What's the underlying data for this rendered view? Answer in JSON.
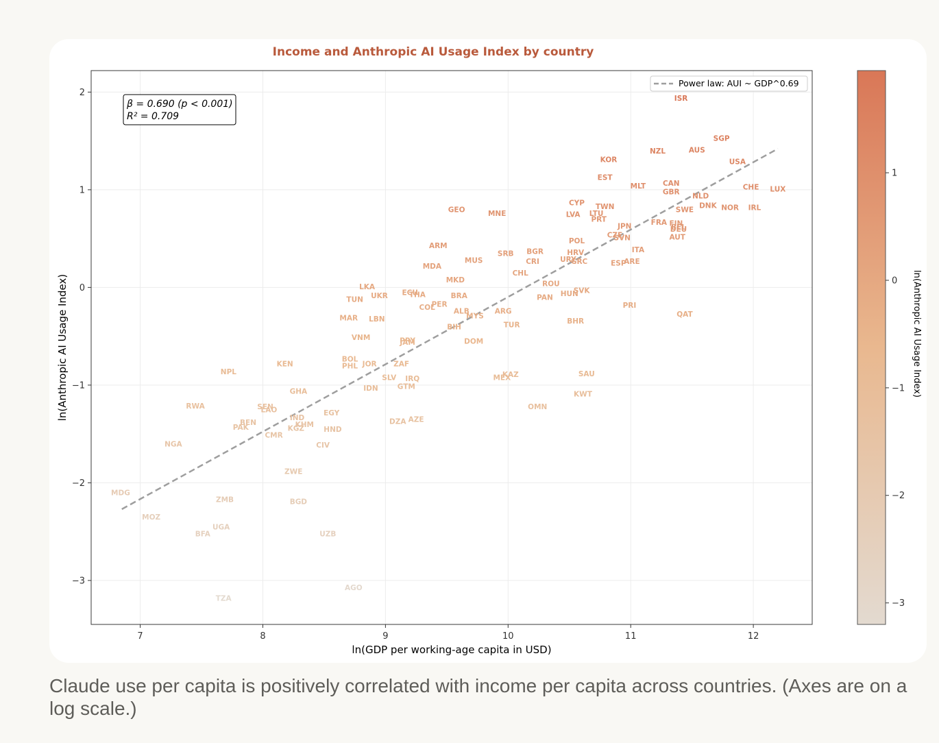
{
  "caption": "Claude use per capita is positively correlated with income per capita across countries. (Axes are on a log scale.)",
  "colors": {
    "background": "#f9f8f4",
    "title": "#b95a3c",
    "label_high": "#d97757",
    "label_low": "#e3dad0",
    "trend": "#9e9e9e"
  },
  "chart_data": {
    "type": "scatter",
    "title": "Income and Anthropic AI Usage Index by country",
    "xlabel": "ln(GDP per working-age capita in USD)",
    "ylabel": "ln(Anthropic AI Usage Index)",
    "colorbar_label": "ln(Anthropic AI Usage Index)",
    "xlim": [
      6.6,
      12.48
    ],
    "ylim": [
      -3.45,
      2.22
    ],
    "x_ticks": [
      7,
      8,
      9,
      10,
      11,
      12
    ],
    "y_ticks": [
      -3,
      -2,
      -1,
      0,
      1,
      2
    ],
    "colorbar_ticks": [
      -3,
      -2,
      -1,
      0,
      1
    ],
    "colorbar_range": [
      -3.2,
      1.95
    ],
    "grid": true,
    "legend": {
      "label": "Power law: AUI ~ GDP^0.69",
      "position": "top-right"
    },
    "annotation": {
      "line1": "β = 0.690 (p < 0.001)",
      "line2": "R² = 0.709"
    },
    "trend": {
      "slope": 0.69,
      "x_start": 6.85,
      "y_start": -2.27,
      "x_end": 12.2,
      "y_end": 1.42
    },
    "points": [
      {
        "label": "ISR",
        "x": 11.41,
        "y": 1.94
      },
      {
        "label": "SGP",
        "x": 11.74,
        "y": 1.53
      },
      {
        "label": "AUS",
        "x": 11.54,
        "y": 1.41
      },
      {
        "label": "NZL",
        "x": 11.22,
        "y": 1.4
      },
      {
        "label": "USA",
        "x": 11.87,
        "y": 1.29
      },
      {
        "label": "KOR",
        "x": 10.82,
        "y": 1.31
      },
      {
        "label": "EST",
        "x": 10.79,
        "y": 1.13
      },
      {
        "label": "MLT",
        "x": 11.06,
        "y": 1.04
      },
      {
        "label": "CAN",
        "x": 11.33,
        "y": 1.07
      },
      {
        "label": "GBR",
        "x": 11.33,
        "y": 0.98
      },
      {
        "label": "CHE",
        "x": 11.98,
        "y": 1.03
      },
      {
        "label": "LUX",
        "x": 12.2,
        "y": 1.01
      },
      {
        "label": "NLD",
        "x": 11.57,
        "y": 0.94
      },
      {
        "label": "DNK",
        "x": 11.63,
        "y": 0.84
      },
      {
        "label": "NOR",
        "x": 11.81,
        "y": 0.82
      },
      {
        "label": "IRL",
        "x": 12.01,
        "y": 0.82
      },
      {
        "label": "SWE",
        "x": 11.44,
        "y": 0.8
      },
      {
        "label": "CYP",
        "x": 10.56,
        "y": 0.87
      },
      {
        "label": "TWN",
        "x": 10.79,
        "y": 0.83
      },
      {
        "label": "LTU",
        "x": 10.72,
        "y": 0.76
      },
      {
        "label": "LVA",
        "x": 10.53,
        "y": 0.75
      },
      {
        "label": "PRT",
        "x": 10.74,
        "y": 0.7
      },
      {
        "label": "FRA",
        "x": 11.23,
        "y": 0.67
      },
      {
        "label": "FIN",
        "x": 11.37,
        "y": 0.66
      },
      {
        "label": "BEL",
        "x": 11.39,
        "y": 0.62
      },
      {
        "label": "DEU",
        "x": 11.39,
        "y": 0.6
      },
      {
        "label": "JPN",
        "x": 10.95,
        "y": 0.63
      },
      {
        "label": "CZE",
        "x": 10.87,
        "y": 0.54
      },
      {
        "label": "SVN",
        "x": 10.93,
        "y": 0.51
      },
      {
        "label": "AUT",
        "x": 11.38,
        "y": 0.52
      },
      {
        "label": "POL",
        "x": 10.56,
        "y": 0.48
      },
      {
        "label": "ITA",
        "x": 11.06,
        "y": 0.39
      },
      {
        "label": "HRV",
        "x": 10.55,
        "y": 0.36
      },
      {
        "label": "URY",
        "x": 10.49,
        "y": 0.29
      },
      {
        "label": "GRC",
        "x": 10.58,
        "y": 0.27
      },
      {
        "label": "ESP",
        "x": 10.9,
        "y": 0.25
      },
      {
        "label": "ARE",
        "x": 11.01,
        "y": 0.27
      },
      {
        "label": "GEO",
        "x": 9.58,
        "y": 0.8
      },
      {
        "label": "MNE",
        "x": 9.91,
        "y": 0.76
      },
      {
        "label": "ARM",
        "x": 9.43,
        "y": 0.43
      },
      {
        "label": "SRB",
        "x": 9.98,
        "y": 0.35
      },
      {
        "label": "BGR",
        "x": 10.22,
        "y": 0.37
      },
      {
        "label": "CRI",
        "x": 10.2,
        "y": 0.27
      },
      {
        "label": "MUS",
        "x": 9.72,
        "y": 0.28
      },
      {
        "label": "MDA",
        "x": 9.38,
        "y": 0.22
      },
      {
        "label": "CHL",
        "x": 10.1,
        "y": 0.15
      },
      {
        "label": "MKD",
        "x": 9.57,
        "y": 0.08
      },
      {
        "label": "ROU",
        "x": 10.35,
        "y": 0.04
      },
      {
        "label": "SVK",
        "x": 10.6,
        "y": -0.03
      },
      {
        "label": "HUN",
        "x": 10.5,
        "y": -0.06
      },
      {
        "label": "PAN",
        "x": 10.3,
        "y": -0.1
      },
      {
        "label": "LKA",
        "x": 8.85,
        "y": 0.01
      },
      {
        "label": "UKR",
        "x": 8.95,
        "y": -0.08
      },
      {
        "label": "TUN",
        "x": 8.75,
        "y": -0.12
      },
      {
        "label": "ECU",
        "x": 9.2,
        "y": -0.05
      },
      {
        "label": "THA",
        "x": 9.26,
        "y": -0.07
      },
      {
        "label": "BRA",
        "x": 9.6,
        "y": -0.08
      },
      {
        "label": "PER",
        "x": 9.44,
        "y": -0.17
      },
      {
        "label": "COL",
        "x": 9.34,
        "y": -0.2
      },
      {
        "label": "ALB",
        "x": 9.62,
        "y": -0.24
      },
      {
        "label": "MYS",
        "x": 9.73,
        "y": -0.29
      },
      {
        "label": "ARG",
        "x": 9.96,
        "y": -0.24
      },
      {
        "label": "BIH",
        "x": 9.56,
        "y": -0.4
      },
      {
        "label": "TUR",
        "x": 10.03,
        "y": -0.38
      },
      {
        "label": "DOM",
        "x": 9.72,
        "y": -0.55
      },
      {
        "label": "PRI",
        "x": 10.99,
        "y": -0.18
      },
      {
        "label": "QAT",
        "x": 11.44,
        "y": -0.27
      },
      {
        "label": "BHR",
        "x": 10.55,
        "y": -0.34
      },
      {
        "label": "MAR",
        "x": 8.7,
        "y": -0.31
      },
      {
        "label": "LBN",
        "x": 8.93,
        "y": -0.32
      },
      {
        "label": "VNM",
        "x": 8.8,
        "y": -0.51
      },
      {
        "label": "PRY",
        "x": 9.18,
        "y": -0.54
      },
      {
        "label": "JAM",
        "x": 9.18,
        "y": -0.56
      },
      {
        "label": "KEN",
        "x": 8.18,
        "y": -0.78
      },
      {
        "label": "BOL",
        "x": 8.71,
        "y": -0.73
      },
      {
        "label": "PHL",
        "x": 8.71,
        "y": -0.8
      },
      {
        "label": "JOR",
        "x": 8.87,
        "y": -0.78
      },
      {
        "label": "ZAF",
        "x": 9.13,
        "y": -0.78
      },
      {
        "label": "NPL",
        "x": 7.72,
        "y": -0.86
      },
      {
        "label": "SLV",
        "x": 9.03,
        "y": -0.92
      },
      {
        "label": "IRQ",
        "x": 9.22,
        "y": -0.93
      },
      {
        "label": "IDN",
        "x": 8.88,
        "y": -1.03
      },
      {
        "label": "GTM",
        "x": 9.17,
        "y": -1.01
      },
      {
        "label": "MEX",
        "x": 9.95,
        "y": -0.92
      },
      {
        "label": "KAZ",
        "x": 10.02,
        "y": -0.89
      },
      {
        "label": "SAU",
        "x": 10.64,
        "y": -0.88
      },
      {
        "label": "KWT",
        "x": 10.61,
        "y": -1.09
      },
      {
        "label": "OMN",
        "x": 10.24,
        "y": -1.22
      },
      {
        "label": "GHA",
        "x": 8.29,
        "y": -1.06
      },
      {
        "label": "RWA",
        "x": 7.45,
        "y": -1.21
      },
      {
        "label": "SEN",
        "x": 8.02,
        "y": -1.22
      },
      {
        "label": "LAO",
        "x": 8.05,
        "y": -1.25
      },
      {
        "label": "EGY",
        "x": 8.56,
        "y": -1.28
      },
      {
        "label": "IND",
        "x": 8.28,
        "y": -1.33
      },
      {
        "label": "BEN",
        "x": 7.88,
        "y": -1.38
      },
      {
        "label": "KHM",
        "x": 8.34,
        "y": -1.4
      },
      {
        "label": "PAK",
        "x": 7.82,
        "y": -1.43
      },
      {
        "label": "KGZ",
        "x": 8.27,
        "y": -1.44
      },
      {
        "label": "HND",
        "x": 8.57,
        "y": -1.45
      },
      {
        "label": "CMR",
        "x": 8.09,
        "y": -1.51
      },
      {
        "label": "DZA",
        "x": 9.1,
        "y": -1.37
      },
      {
        "label": "AZE",
        "x": 9.25,
        "y": -1.35
      },
      {
        "label": "NGA",
        "x": 7.27,
        "y": -1.6
      },
      {
        "label": "CIV",
        "x": 8.49,
        "y": -1.61
      },
      {
        "label": "ZWE",
        "x": 8.25,
        "y": -1.88
      },
      {
        "label": "MDG",
        "x": 6.84,
        "y": -2.1
      },
      {
        "label": "ZMB",
        "x": 7.69,
        "y": -2.17
      },
      {
        "label": "BGD",
        "x": 8.29,
        "y": -2.19
      },
      {
        "label": "MOZ",
        "x": 7.09,
        "y": -2.35
      },
      {
        "label": "UGA",
        "x": 7.66,
        "y": -2.45
      },
      {
        "label": "BFA",
        "x": 7.51,
        "y": -2.52
      },
      {
        "label": "UZB",
        "x": 8.53,
        "y": -2.52
      },
      {
        "label": "AGO",
        "x": 8.74,
        "y": -3.07
      },
      {
        "label": "TZA",
        "x": 7.68,
        "y": -3.18
      }
    ]
  }
}
